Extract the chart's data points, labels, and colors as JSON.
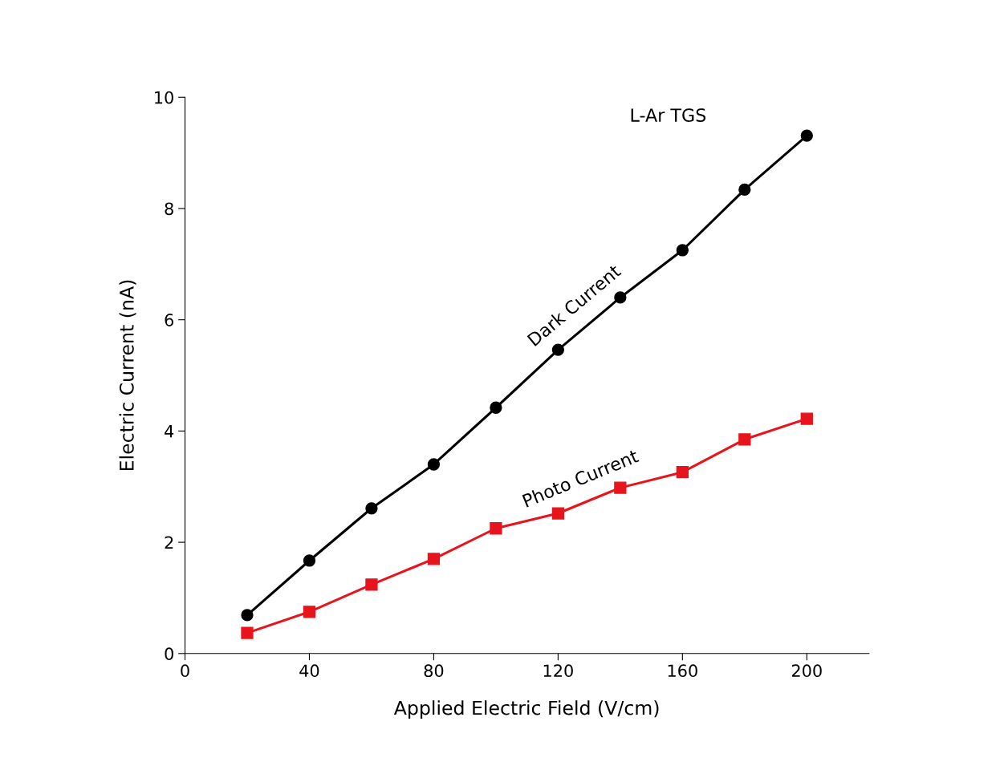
{
  "chart_data": {
    "type": "line",
    "xlabel": "Applied Electric Field (V/cm)",
    "ylabel": "Electric Current (nA)",
    "annotations": [
      "L-Ar TGS"
    ],
    "x": [
      20,
      40,
      60,
      80,
      100,
      120,
      140,
      160,
      180,
      200
    ],
    "series": [
      {
        "name": "Dark Current",
        "color": "#000000",
        "marker": "circle",
        "values": [
          0.69,
          1.67,
          2.61,
          3.4,
          4.42,
          5.46,
          6.4,
          7.25,
          8.34,
          9.31
        ]
      },
      {
        "name": "Photo Current",
        "color": "#e8141c",
        "marker": "square",
        "values": [
          0.37,
          0.75,
          1.24,
          1.7,
          2.25,
          2.52,
          2.98,
          3.26,
          3.85,
          4.22
        ]
      }
    ],
    "xlim": [
      0,
      220
    ],
    "ylim": [
      0,
      10
    ],
    "xticks": [
      0,
      40,
      80,
      120,
      160,
      200
    ],
    "yticks": [
      0,
      2,
      4,
      6,
      8,
      10
    ],
    "grid": false,
    "legend": false,
    "line_style": "solid"
  }
}
